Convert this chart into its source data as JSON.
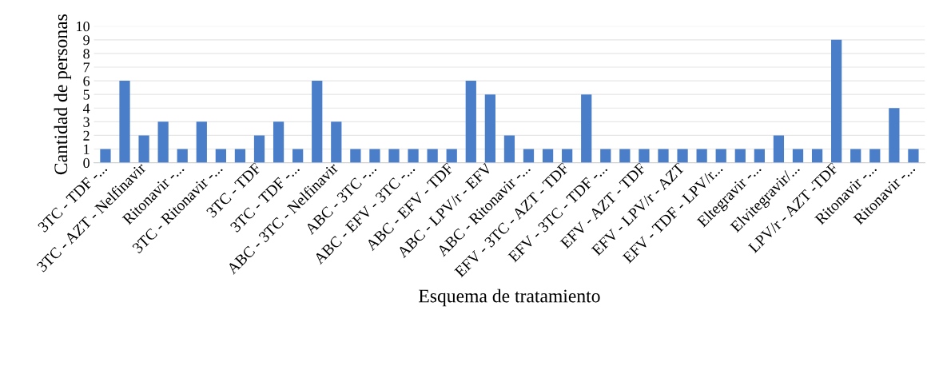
{
  "chart_data": {
    "type": "bar",
    "xlabel": "Esquema de tratamiento",
    "ylabel": "Cantidad de personas",
    "categories": [
      "3TC - TDF -...",
      null,
      "3TC - AZT - Nelfinavir",
      null,
      "Ritonavir -...",
      null,
      "3TC - Ritonavir -...",
      null,
      "3TC - TDF",
      null,
      "3TC - TDF -...",
      null,
      "ABC - 3TC - Nelfinavir",
      null,
      "ABC - 3TC -...",
      null,
      "ABC - EFV - 3TC -...",
      null,
      "ABC - EFV - TDF",
      null,
      "ABC - LPV/r - EFV",
      null,
      "ABC - Ritonavir -...",
      null,
      "EFV - 3TC - AZT - TDF",
      null,
      "EFV - 3TC - TDF -...",
      null,
      "EFV - AZT - TDF",
      null,
      "EFV - LPV/r - AZT",
      null,
      "EFV - TDF - LPV/r...",
      null,
      "Eltegravir -...",
      null,
      "Elvitegravir/...",
      null,
      "LPV/r - AZT -TDF",
      null,
      "Ritonavir -...",
      null,
      "Ritonavir -..."
    ],
    "values": [
      1,
      6,
      2,
      3,
      1,
      3,
      1,
      1,
      2,
      3,
      1,
      6,
      3,
      1,
      1,
      1,
      1,
      1,
      1,
      6,
      5,
      2,
      1,
      1,
      1,
      5,
      1,
      1,
      1,
      1,
      1,
      1,
      1,
      1,
      1,
      2,
      1,
      1,
      9,
      1,
      1,
      4,
      1
    ],
    "color": "#4a7ec8",
    "ylim": [
      0,
      10
    ],
    "yticks": [
      0,
      1,
      2,
      3,
      4,
      5,
      6,
      7,
      8,
      9,
      10
    ],
    "grid": "y"
  }
}
